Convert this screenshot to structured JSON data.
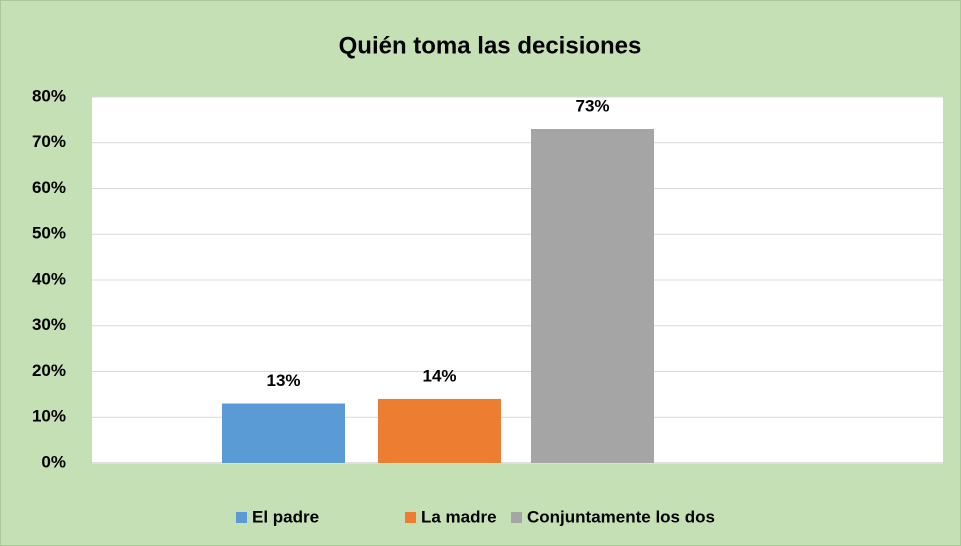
{
  "chart_data": {
    "type": "bar",
    "title": "Quién toma las decisiones",
    "series": [
      {
        "name": "El padre",
        "color": "#5b9bd5",
        "values": [
          13
        ],
        "value_labels": [
          "13%"
        ]
      },
      {
        "name": "La madre",
        "color": "#ed7d31",
        "values": [
          14
        ],
        "value_labels": [
          "14%"
        ]
      },
      {
        "name": "Conjuntamente los dos",
        "color": "#a5a5a5",
        "values": [
          73
        ],
        "value_labels": [
          "73%"
        ]
      }
    ],
    "ylim": [
      0,
      80
    ],
    "yticks": [
      {
        "value": 0,
        "label": "0%"
      },
      {
        "value": 10,
        "label": "10%"
      },
      {
        "value": 20,
        "label": "20%"
      },
      {
        "value": 30,
        "label": "30%"
      },
      {
        "value": 40,
        "label": "40%"
      },
      {
        "value": 50,
        "label": "50%"
      },
      {
        "value": 60,
        "label": "60%"
      },
      {
        "value": 70,
        "label": "70%"
      },
      {
        "value": 80,
        "label": "80%"
      }
    ],
    "grid": true,
    "legend": "bottom"
  }
}
